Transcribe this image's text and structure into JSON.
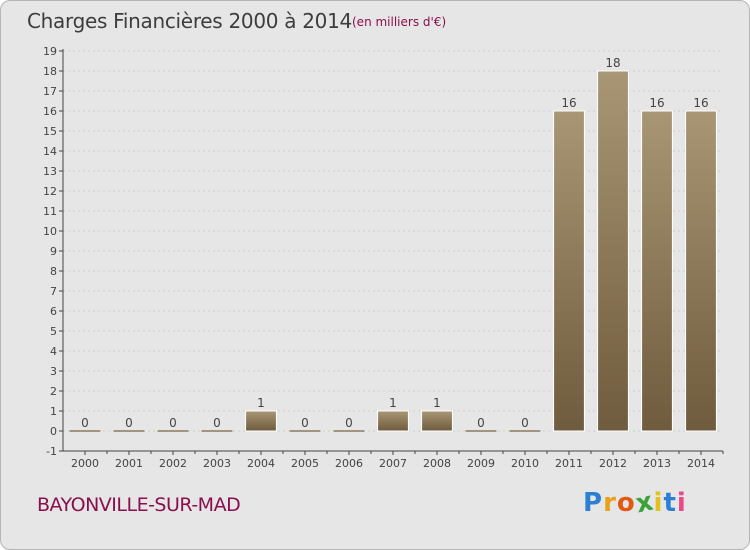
{
  "header": {
    "title": "Charges Financières 2000 à 2014",
    "subtitle": "(en milliers d'€)"
  },
  "footer": {
    "place": "BAYONVILLE-SUR-MAD",
    "logo_letters": [
      "P",
      "r",
      "o",
      "x",
      "i",
      "t",
      "i"
    ],
    "logo_colors": [
      "#2d7fd4",
      "#e8a21a",
      "#e05a12",
      "#3aa23a",
      "#e0c21a",
      "#2d7fd4",
      "#e84a8a"
    ]
  },
  "colors": {
    "bar_light": "#a89674",
    "bar_dark": "#6f5b3d",
    "axis": "#444444",
    "grid": "#cfcfcf",
    "label": "#444444"
  },
  "chart_data": {
    "type": "bar",
    "categories": [
      "2000",
      "2001",
      "2002",
      "2003",
      "2004",
      "2005",
      "2006",
      "2007",
      "2008",
      "2009",
      "2010",
      "2011",
      "2012",
      "2013",
      "2014"
    ],
    "values": [
      0,
      0,
      0,
      0,
      1,
      0,
      0,
      1,
      1,
      0,
      0,
      16,
      18,
      16,
      16
    ],
    "data_labels": [
      "0",
      "0",
      "0",
      "0",
      "1",
      "0",
      "0",
      "1",
      "1",
      "0",
      "0",
      "16",
      "18",
      "16",
      "16"
    ],
    "yticks": [
      "-1",
      "0",
      "1",
      "2",
      "3",
      "4",
      "5",
      "6",
      "7",
      "8",
      "9",
      "10",
      "11",
      "12",
      "13",
      "14",
      "15",
      "16",
      "17",
      "18",
      "19"
    ],
    "ylim": [
      -1,
      19
    ],
    "title": "Charges Financières 2000 à 2014",
    "xlabel": "",
    "ylabel": ""
  }
}
